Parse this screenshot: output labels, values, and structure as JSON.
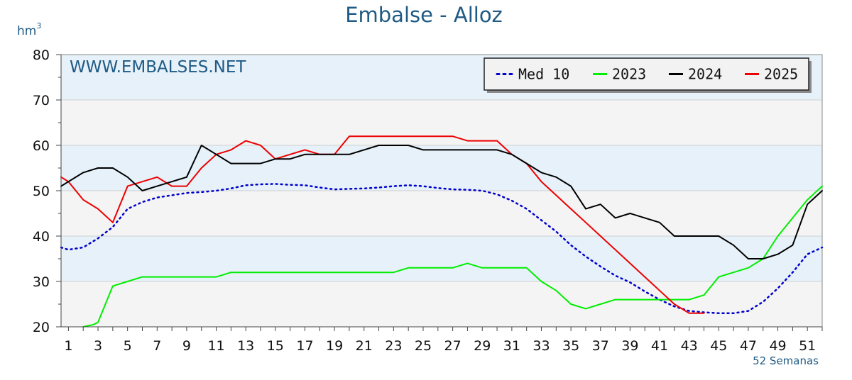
{
  "chart_data": {
    "type": "line",
    "title": "Embalse - Alloz",
    "ylabel": "hm",
    "ylabel_sup": "3",
    "xlabel": "52 Semanas",
    "watermark": "WWW.EMBALSES.NET",
    "ylim": [
      20,
      80
    ],
    "yticks": [
      20,
      30,
      40,
      50,
      60,
      70,
      80
    ],
    "xlim": [
      0.5,
      52
    ],
    "xticks": [
      1,
      3,
      5,
      7,
      9,
      11,
      13,
      15,
      17,
      19,
      21,
      23,
      25,
      27,
      29,
      31,
      33,
      35,
      37,
      39,
      41,
      43,
      45,
      47,
      49,
      51
    ],
    "legend_position": "top-right",
    "grid": true,
    "series": [
      {
        "name": "Med 10",
        "color": "#0000cc",
        "style": "dotted",
        "x": [
          0.5,
          1,
          2,
          3,
          4,
          5,
          6,
          7,
          8,
          9,
          10,
          11,
          12,
          13,
          14,
          15,
          16,
          17,
          18,
          19,
          20,
          21,
          22,
          23,
          24,
          25,
          26,
          27,
          28,
          29,
          30,
          31,
          32,
          33,
          34,
          35,
          36,
          37,
          38,
          39,
          40,
          41,
          42,
          43,
          44,
          45,
          46,
          47,
          48,
          49,
          50,
          51,
          52
        ],
        "values": [
          37.5,
          37,
          37.5,
          39.5,
          42,
          46,
          47.5,
          48.5,
          49,
          49.5,
          49.7,
          50,
          50.5,
          51.2,
          51.4,
          51.5,
          51.3,
          51.2,
          50.7,
          50.3,
          50.4,
          50.5,
          50.7,
          51,
          51.2,
          51,
          50.6,
          50.3,
          50.2,
          50,
          49.2,
          47.8,
          46,
          43.5,
          41,
          38,
          35.5,
          33.3,
          31.3,
          29.8,
          27.8,
          26,
          24.5,
          23.5,
          23.2,
          23,
          23,
          23.5,
          25.5,
          28.5,
          32,
          36,
          37.5
        ]
      },
      {
        "name": "2023",
        "color": "#00ee00",
        "style": "solid",
        "x": [
          2,
          2.7,
          3,
          4,
          5,
          6,
          7,
          8,
          9,
          10,
          11,
          12,
          13,
          14,
          15,
          16,
          17,
          18,
          19,
          20,
          21,
          22,
          23,
          24,
          25,
          26,
          27,
          28,
          29,
          30,
          31,
          32,
          33,
          34,
          35,
          36,
          37,
          38,
          39,
          40,
          41,
          42,
          43,
          44,
          45,
          46,
          47,
          48,
          49,
          50,
          51,
          52
        ],
        "values": [
          20,
          20.5,
          21,
          29,
          30,
          31,
          31,
          31,
          31,
          31,
          31,
          32,
          32,
          32,
          32,
          32,
          32,
          32,
          32,
          32,
          32,
          32,
          32,
          33,
          33,
          33,
          33,
          34,
          33,
          33,
          33,
          33,
          30,
          28,
          25,
          24,
          25,
          26,
          26,
          26,
          26,
          26,
          26,
          27,
          31,
          32,
          33,
          35,
          40,
          44,
          48,
          51
        ]
      },
      {
        "name": "2024",
        "color": "#000000",
        "style": "solid",
        "x": [
          0.5,
          1,
          2,
          3,
          4,
          5,
          6,
          7,
          8,
          9,
          10,
          11,
          12,
          13,
          14,
          15,
          16,
          17,
          18,
          19,
          20,
          21,
          22,
          23,
          24,
          25,
          26,
          27,
          28,
          29,
          30,
          31,
          32,
          33,
          34,
          35,
          36,
          37,
          38,
          39,
          40,
          41,
          42,
          43,
          44,
          45,
          46,
          47,
          48,
          49,
          50,
          51,
          52
        ],
        "values": [
          51,
          52,
          54,
          55,
          55,
          53,
          50,
          51,
          52,
          53,
          60,
          58,
          56,
          56,
          56,
          57,
          57,
          58,
          58,
          58,
          58,
          59,
          60,
          60,
          60,
          59,
          59,
          59,
          59,
          59,
          59,
          58,
          56,
          54,
          53,
          51,
          46,
          47,
          44,
          45,
          44,
          43,
          40,
          40,
          40,
          40,
          38,
          35,
          35,
          36,
          38,
          47,
          50
        ]
      },
      {
        "name": "2025",
        "color": "#ee0000",
        "style": "solid",
        "x": [
          0.5,
          1,
          2,
          3,
          4,
          5,
          6,
          7,
          8,
          9,
          10,
          11,
          12,
          13,
          14,
          15,
          16,
          17,
          18,
          19,
          20,
          21,
          22,
          23,
          24,
          25,
          26,
          27,
          28,
          29,
          30,
          31,
          32,
          33,
          34,
          35,
          36,
          37,
          38,
          39,
          40,
          41,
          42,
          43,
          44
        ],
        "values": [
          53,
          52,
          48,
          46,
          43,
          51,
          52,
          53,
          51,
          51,
          55,
          58,
          59,
          61,
          60,
          57,
          58,
          59,
          58,
          58,
          62,
          62,
          62,
          62,
          62,
          62,
          62,
          62,
          61,
          61,
          61,
          58,
          56,
          52,
          49,
          46,
          43,
          40,
          37,
          34,
          31,
          28,
          25,
          23,
          23
        ]
      }
    ]
  }
}
